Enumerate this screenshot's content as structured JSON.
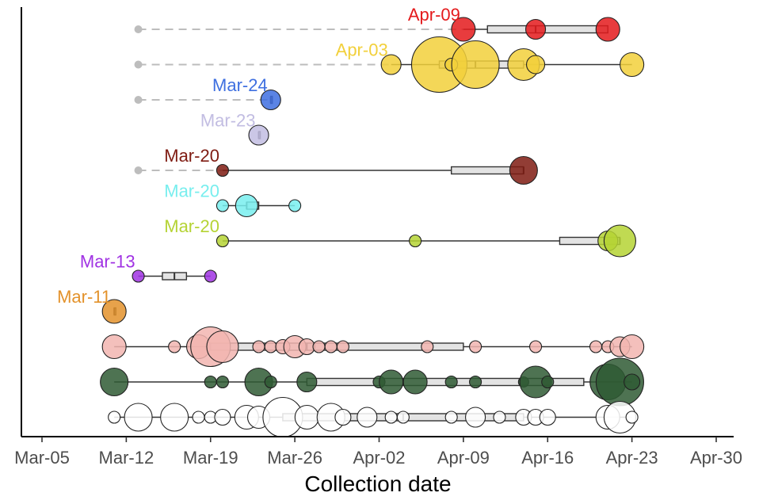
{
  "chart_data": {
    "type": "scatter",
    "xlabel": "Collection date",
    "x_ticks": [
      "Mar-05",
      "Mar-12",
      "Mar-19",
      "Mar-26",
      "Apr-02",
      "Apr-09",
      "Apr-16",
      "Apr-23",
      "Apr-30"
    ],
    "xlim": [
      "2020-03-02",
      "2020-05-01"
    ],
    "grid": false,
    "legend": "none",
    "series": [
      {
        "label": "Apr-09",
        "color": "#e41a1c",
        "dashed_from": "2020-03-13",
        "box": [
          "2020-04-09",
          "2020-04-11",
          "2020-04-15",
          "2020-04-21",
          "2020-04-21"
        ],
        "points": [
          [
            "2020-04-09",
            2
          ],
          [
            "2020-04-15",
            1.5
          ],
          [
            "2020-04-21",
            2
          ]
        ]
      },
      {
        "label": "Apr-03",
        "color": "#f2d03b",
        "dashed_from": "2020-03-13",
        "box": [
          "2020-04-03",
          "2020-04-07",
          "2020-04-10",
          "2020-04-14",
          "2020-04-23"
        ],
        "points": [
          [
            "2020-04-03",
            1.5
          ],
          [
            "2020-04-07",
            6
          ],
          [
            "2020-04-08",
            0.6
          ],
          [
            "2020-04-10",
            5
          ],
          [
            "2020-04-14",
            3
          ],
          [
            "2020-04-15",
            1.3
          ],
          [
            "2020-04-23",
            2
          ]
        ]
      },
      {
        "label": "Mar-24",
        "color": "#3e6fe0",
        "dashed_from": "2020-03-13",
        "box": [
          "2020-03-24",
          "2020-03-24",
          "2020-03-24",
          "2020-03-24",
          "2020-03-24"
        ],
        "points": [
          [
            "2020-03-24",
            1.5
          ]
        ]
      },
      {
        "label": "Mar-23",
        "color": "#c2bde2",
        "box": [
          "2020-03-23",
          "2020-03-23",
          "2020-03-23",
          "2020-03-23",
          "2020-03-23"
        ],
        "points": [
          [
            "2020-03-23",
            1.5
          ]
        ]
      },
      {
        "label": "Mar-20",
        "color": "#7f1b12",
        "dashed_from": "2020-03-13",
        "box": [
          "2020-03-20",
          "2020-04-08",
          "2020-04-14",
          "2020-04-14",
          "2020-04-14"
        ],
        "points": [
          [
            "2020-03-20",
            0.5
          ],
          [
            "2020-04-14",
            2.5
          ]
        ]
      },
      {
        "label": "Mar-20",
        "color": "#78eeee",
        "box": [
          "2020-03-20",
          "2020-03-22",
          "2020-03-22",
          "2020-03-23",
          "2020-03-26"
        ],
        "points": [
          [
            "2020-03-20",
            0.5
          ],
          [
            "2020-03-22",
            1.8
          ],
          [
            "2020-03-26",
            0.5
          ]
        ]
      },
      {
        "label": "Mar-20",
        "color": "#b5d334",
        "box": [
          "2020-03-20",
          "2020-04-17",
          "2020-04-22",
          "2020-04-22",
          "2020-04-22"
        ],
        "points": [
          [
            "2020-03-20",
            0.5
          ],
          [
            "2020-04-05",
            0.5
          ],
          [
            "2020-04-21",
            1.5
          ],
          [
            "2020-04-22",
            3
          ]
        ]
      },
      {
        "label": "Mar-13",
        "color": "#a032e3",
        "box": [
          "2020-03-13",
          "2020-03-15",
          "2020-03-16",
          "2020-03-17",
          "2020-03-19"
        ],
        "points": [
          [
            "2020-03-13",
            0.5
          ],
          [
            "2020-03-19",
            0.5
          ]
        ]
      },
      {
        "label": "Mar-11",
        "color": "#e3922b",
        "box": [
          "2020-03-11",
          "2020-03-11",
          "2020-03-11",
          "2020-03-11",
          "2020-03-11"
        ],
        "points": [
          [
            "2020-03-11",
            2
          ]
        ]
      },
      {
        "label": "",
        "color": "#f2b5b0",
        "box": [
          "2020-03-11",
          "2020-03-19",
          "2020-03-27",
          "2020-04-09",
          "2020-04-23"
        ],
        "points": [
          [
            "2020-03-11",
            2
          ],
          [
            "2020-03-16",
            0.5
          ],
          [
            "2020-03-18",
            2
          ],
          [
            "2020-03-19",
            4
          ],
          [
            "2020-03-20",
            3
          ],
          [
            "2020-03-23",
            0.5
          ],
          [
            "2020-03-24",
            0.5
          ],
          [
            "2020-03-25",
            0.8
          ],
          [
            "2020-03-26",
            1.8
          ],
          [
            "2020-03-27",
            1
          ],
          [
            "2020-03-28",
            0.5
          ],
          [
            "2020-03-29",
            0.5
          ],
          [
            "2020-03-30",
            0.5
          ],
          [
            "2020-04-06",
            0.5
          ],
          [
            "2020-04-10",
            0.5
          ],
          [
            "2020-04-15",
            0.5
          ],
          [
            "2020-04-20",
            0.5
          ],
          [
            "2020-04-21",
            0.5
          ],
          [
            "2020-04-22",
            1.5
          ],
          [
            "2020-04-23",
            2
          ]
        ]
      },
      {
        "label": "",
        "color": "#2f5b34",
        "box": [
          "2020-03-11",
          "2020-03-27",
          "2020-04-04",
          "2020-04-19",
          "2020-04-23"
        ],
        "points": [
          [
            "2020-03-11",
            2.5
          ],
          [
            "2020-03-19",
            0.5
          ],
          [
            "2020-03-20",
            0.5
          ],
          [
            "2020-03-23",
            2.5
          ],
          [
            "2020-03-24",
            0.5
          ],
          [
            "2020-03-27",
            1.5
          ],
          [
            "2020-04-02",
            0.5
          ],
          [
            "2020-04-03",
            2
          ],
          [
            "2020-04-05",
            2
          ],
          [
            "2020-04-08",
            0.5
          ],
          [
            "2020-04-10",
            0.5
          ],
          [
            "2020-04-14",
            0.3
          ],
          [
            "2020-04-15",
            3
          ],
          [
            "2020-04-16",
            0.5
          ],
          [
            "2020-04-21",
            3.5
          ],
          [
            "2020-04-22",
            5
          ],
          [
            "2020-04-23",
            1
          ]
        ]
      },
      {
        "label": "",
        "color": "#ffffff",
        "box": [
          "2020-03-11",
          "2020-03-25",
          "2020-04-04",
          "2020-04-14",
          "2020-04-23"
        ],
        "points": [
          [
            "2020-03-11",
            0.5
          ],
          [
            "2020-03-13",
            2.5
          ],
          [
            "2020-03-16",
            2.5
          ],
          [
            "2020-03-18",
            0.5
          ],
          [
            "2020-03-19",
            0.5
          ],
          [
            "2020-03-20",
            1
          ],
          [
            "2020-03-22",
            2
          ],
          [
            "2020-03-23",
            1.8
          ],
          [
            "2020-03-25",
            4
          ],
          [
            "2020-03-27",
            2
          ],
          [
            "2020-03-29",
            2.5
          ],
          [
            "2020-03-30",
            1
          ],
          [
            "2020-04-01",
            1.5
          ],
          [
            "2020-04-03",
            0.5
          ],
          [
            "2020-04-04",
            0.5
          ],
          [
            "2020-04-08",
            0.5
          ],
          [
            "2020-04-10",
            1.5
          ],
          [
            "2020-04-12",
            0.5
          ],
          [
            "2020-04-14",
            1
          ],
          [
            "2020-04-15",
            1
          ],
          [
            "2020-04-16",
            1
          ],
          [
            "2020-04-21",
            2
          ],
          [
            "2020-04-22",
            3
          ],
          [
            "2020-04-23",
            0.5
          ]
        ]
      }
    ]
  }
}
